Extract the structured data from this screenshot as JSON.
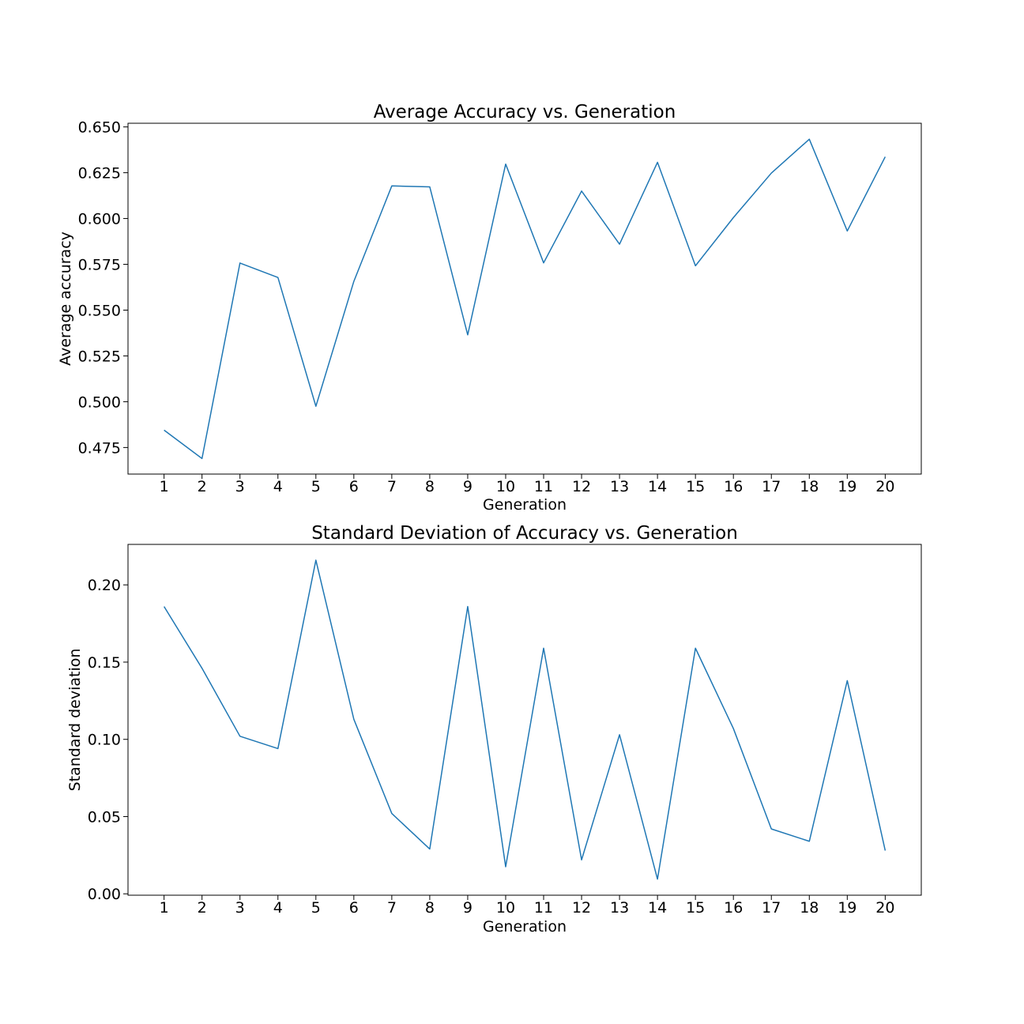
{
  "chart_data": [
    {
      "type": "line",
      "title": "Average Accuracy vs. Generation",
      "xlabel": "Generation",
      "ylabel": "Average accuracy",
      "x": [
        1,
        2,
        3,
        4,
        5,
        6,
        7,
        8,
        9,
        10,
        11,
        12,
        13,
        14,
        15,
        16,
        17,
        18,
        19,
        20
      ],
      "x_ticks": [
        "1",
        "2",
        "3",
        "4",
        "5",
        "6",
        "7",
        "8",
        "9",
        "10",
        "11",
        "12",
        "13",
        "14",
        "15",
        "16",
        "17",
        "18",
        "19",
        "20"
      ],
      "xlim": [
        0.05,
        20.95
      ],
      "ylim": [
        0.4605,
        0.652
      ],
      "y_ticks": [
        0.475,
        0.5,
        0.525,
        0.55,
        0.575,
        0.6,
        0.625,
        0.65
      ],
      "y_tick_labels": [
        "0.475",
        "0.500",
        "0.525",
        "0.550",
        "0.575",
        "0.600",
        "0.625",
        "0.650"
      ],
      "grid": false,
      "series": [
        {
          "color": "#1f77b4",
          "values": [
            0.4845,
            0.469,
            0.5757,
            0.5678,
            0.4975,
            0.5657,
            0.6178,
            0.6173,
            0.5365,
            0.6297,
            0.5758,
            0.615,
            0.586,
            0.6307,
            0.5742,
            0.6005,
            0.6248,
            0.6433,
            0.5932,
            0.6337
          ]
        }
      ]
    },
    {
      "type": "line",
      "title": "Standard Deviation of Accuracy vs. Generation",
      "xlabel": "Generation",
      "ylabel": "Standard deviation",
      "x": [
        1,
        2,
        3,
        4,
        5,
        6,
        7,
        8,
        9,
        10,
        11,
        12,
        13,
        14,
        15,
        16,
        17,
        18,
        19,
        20
      ],
      "x_ticks": [
        "1",
        "2",
        "3",
        "4",
        "5",
        "6",
        "7",
        "8",
        "9",
        "10",
        "11",
        "12",
        "13",
        "14",
        "15",
        "16",
        "17",
        "18",
        "19",
        "20"
      ],
      "xlim": [
        0.05,
        20.95
      ],
      "ylim": [
        -0.0009,
        0.2262
      ],
      "y_ticks": [
        0.0,
        0.05,
        0.1,
        0.15,
        0.2
      ],
      "y_tick_labels": [
        "0.00",
        "0.05",
        "0.10",
        "0.15",
        "0.20"
      ],
      "grid": false,
      "series": [
        {
          "color": "#1f77b4",
          "values": [
            0.186,
            0.146,
            0.102,
            0.094,
            0.216,
            0.113,
            0.052,
            0.029,
            0.186,
            0.0175,
            0.159,
            0.022,
            0.103,
            0.0095,
            0.159,
            0.107,
            0.042,
            0.034,
            0.138,
            0.028
          ]
        }
      ]
    }
  ]
}
